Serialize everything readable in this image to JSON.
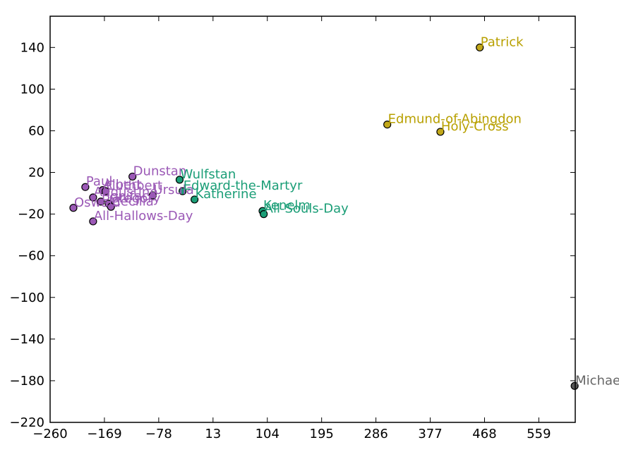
{
  "chart_data": {
    "type": "scatter",
    "title": "",
    "xlabel": "",
    "ylabel": "",
    "xlim": [
      -260,
      620
    ],
    "ylim": [
      -220,
      170
    ],
    "grid": false,
    "xticks": [
      -260,
      -169,
      -78,
      13,
      104,
      195,
      286,
      377,
      468,
      559
    ],
    "yticks": [
      140,
      100,
      60,
      20,
      -20,
      -60,
      -100,
      -140,
      -180,
      -220
    ],
    "xtick_labels": [
      "−260",
      "−169",
      "−78",
      "13",
      "104",
      "195",
      "286",
      "377",
      "468",
      "559"
    ],
    "ytick_labels": [
      "140",
      "100",
      "60",
      "20",
      "−20",
      "−60",
      "−100",
      "−140",
      "−180",
      "−220"
    ],
    "series": [
      {
        "color": "#9b59b6",
        "text_color": "#9b59b6",
        "points": [
          {
            "label": "Dunstan",
            "x": -122,
            "y": 16
          },
          {
            "label": "Paul",
            "x": -201,
            "y": 6
          },
          {
            "label": "Albert",
            "x": -172,
            "y": 3
          },
          {
            "label": "Cuthbert",
            "x": -167,
            "y": 2
          },
          {
            "label": "Ursula",
            "x": -88,
            "y": -2
          },
          {
            "label": "Augustine",
            "x": -188,
            "y": -4
          },
          {
            "label": "Boniface",
            "x": -175,
            "y": -8
          },
          {
            "label": "Gregory",
            "x": -162,
            "y": -10
          },
          {
            "label": "Cecilia",
            "x": -158,
            "y": -13
          },
          {
            "label": "Oswald",
            "x": -221,
            "y": -14
          },
          {
            "label": "All-Hallows-Day",
            "x": -188,
            "y": -27
          }
        ]
      },
      {
        "color": "#1b9e77",
        "text_color": "#1b9e77",
        "points": [
          {
            "label": "Wulfstan",
            "x": -43,
            "y": 13
          },
          {
            "label": "Edward-the-Martyr",
            "x": -38,
            "y": 2
          },
          {
            "label": "Katherine",
            "x": -18,
            "y": -6
          },
          {
            "label": "Kenelm",
            "x": 96,
            "y": -17
          },
          {
            "label": "All-Souls-Day",
            "x": 98,
            "y": -20
          }
        ]
      },
      {
        "color": "#c2a81a",
        "text_color": "#b8a000",
        "points": [
          {
            "label": "Patrick",
            "x": 460,
            "y": 140
          },
          {
            "label": "Edmund-of-Abingdon",
            "x": 305,
            "y": 66
          },
          {
            "label": "Holy-Cross",
            "x": 394,
            "y": 59
          }
        ]
      },
      {
        "color": "#555555",
        "text_color": "#666666",
        "points": [
          {
            "label": "Michael",
            "x": 619,
            "y": -185
          }
        ]
      }
    ]
  }
}
